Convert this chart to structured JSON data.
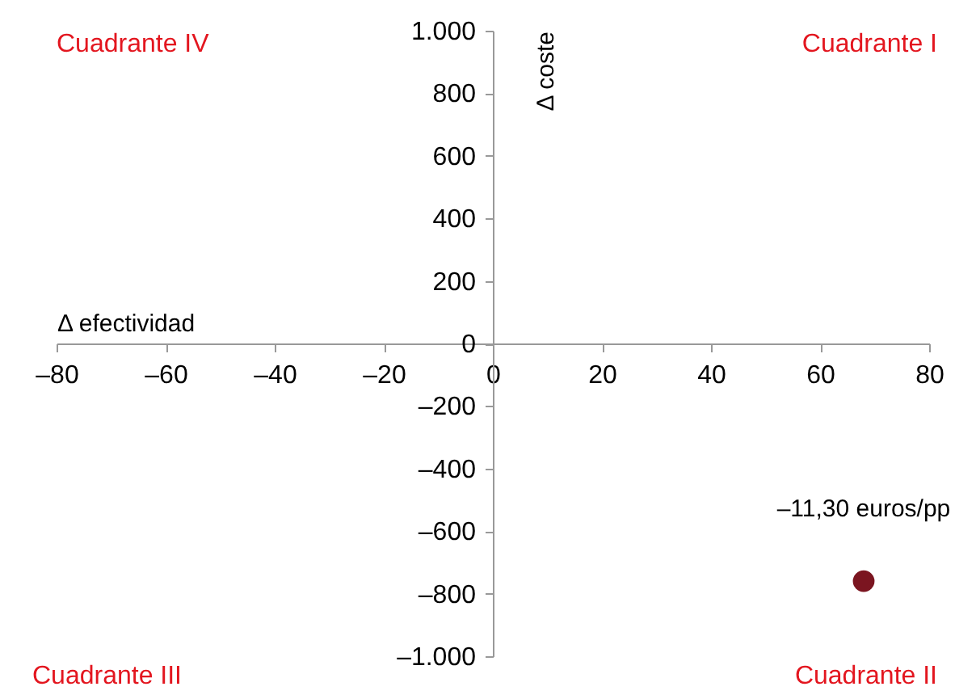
{
  "chart_data": {
    "type": "scatter",
    "xlabel": "Δ efectividad",
    "ylabel": "Δ coste",
    "x": [
      68
    ],
    "values": [
      -760
    ],
    "color": "#7b1520",
    "marker": "circle",
    "xlim": [
      -80,
      80
    ],
    "ylim": [
      -1000,
      1000
    ],
    "xticks": [
      {
        "value": -80,
        "label": "–80"
      },
      {
        "value": -60,
        "label": "–60"
      },
      {
        "value": -40,
        "label": "–40"
      },
      {
        "value": -20,
        "label": "–20"
      },
      0,
      20,
      40,
      60,
      80
    ],
    "yticks": [
      {
        "value": -1000,
        "label": "–1.000"
      },
      {
        "value": -800,
        "label": "–800"
      },
      {
        "value": -600,
        "label": "–600"
      },
      {
        "value": -400,
        "label": "–400"
      },
      {
        "value": -200,
        "label": "–200"
      },
      0,
      200,
      400,
      600,
      800,
      {
        "value": 1000,
        "label": "1.000"
      }
    ],
    "grid": false,
    "annotations": [
      "Cuadrante IV",
      "Cuadrante I",
      "Cuadrante III",
      "Cuadrante II",
      {
        "text": "–11,30 euros/pp",
        "x": 68,
        "y": -760
      }
    ]
  }
}
